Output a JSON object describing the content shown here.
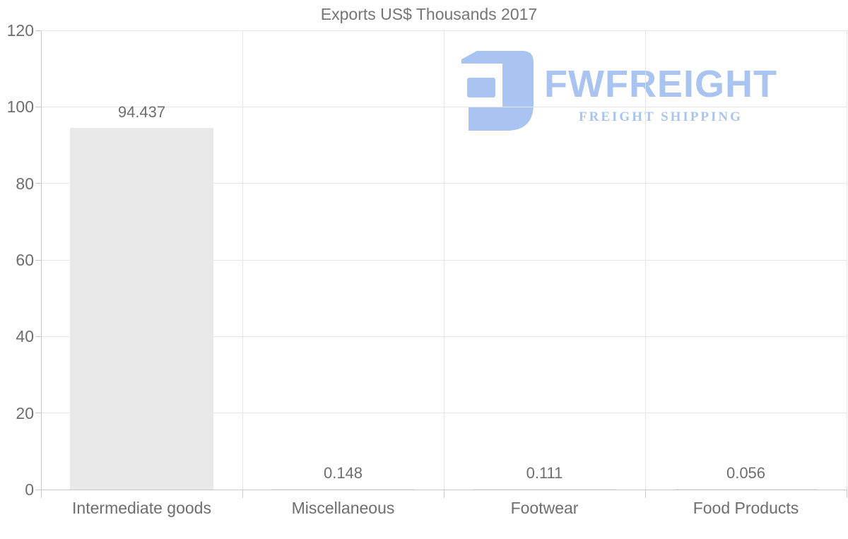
{
  "title": "Exports US$ Thousands 2017",
  "watermark": {
    "brand": "FWFREIGHT",
    "tagline": "FREIGHT SHIPPING",
    "color": "#a9c4f0"
  },
  "chart_data": {
    "type": "bar",
    "title": "Exports US$ Thousands 2017",
    "categories": [
      "Intermediate goods",
      "Miscellaneous",
      "Footwear",
      "Food Products"
    ],
    "values": [
      94.437,
      0.148,
      0.111,
      0.056
    ],
    "value_labels": [
      "94.437",
      "0.148",
      "0.111",
      "0.056"
    ],
    "xlabel": "",
    "ylabel": "",
    "ylim": [
      0,
      120
    ],
    "yticks": [
      0,
      20,
      40,
      60,
      80,
      100,
      120
    ],
    "grid": true,
    "legend": "none",
    "bar_color": "#e9e9e9",
    "grid_color": "#e6e6e6",
    "axis_color": "#c9c9c9",
    "label_color": "#6e6e6e"
  }
}
